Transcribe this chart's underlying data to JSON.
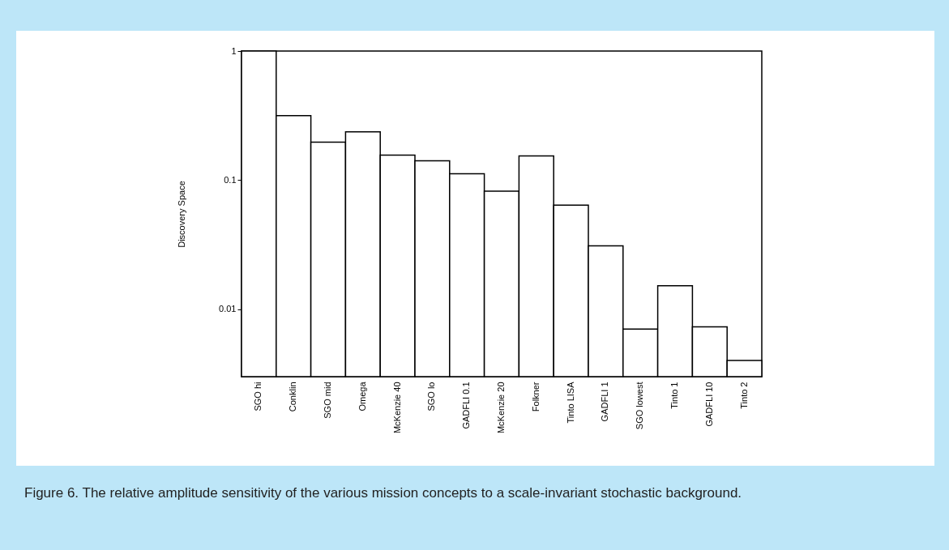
{
  "chart_data": {
    "type": "bar",
    "ylabel": "Discovery Space",
    "categories": [
      "SGO hi",
      "Conklin",
      "SGO mid",
      "Omega",
      "McKenzie 40",
      "SGO lo",
      "GADFLI 0.1",
      "McKenzie 20",
      "Folkner",
      "Tinto LISA",
      "GADFLI 1",
      "SGO lowest",
      "Tinto 1",
      "GADFLI 10",
      "Tinto 2"
    ],
    "values": [
      1,
      0.316,
      0.197,
      0.237,
      0.156,
      0.141,
      0.112,
      0.082,
      0.154,
      0.064,
      0.031,
      0.007,
      0.0152,
      0.0073,
      0.004
    ],
    "color": "#ffffff",
    "log": true,
    "ylim": [
      0.003,
      1
    ],
    "yticks": [
      1,
      0.1,
      0.01
    ],
    "grid": false,
    "annotations": [
      "Figure 6.  The relative amplitude sensitivity of the various mission concepts to a scale-invariant stochastic background."
    ]
  }
}
